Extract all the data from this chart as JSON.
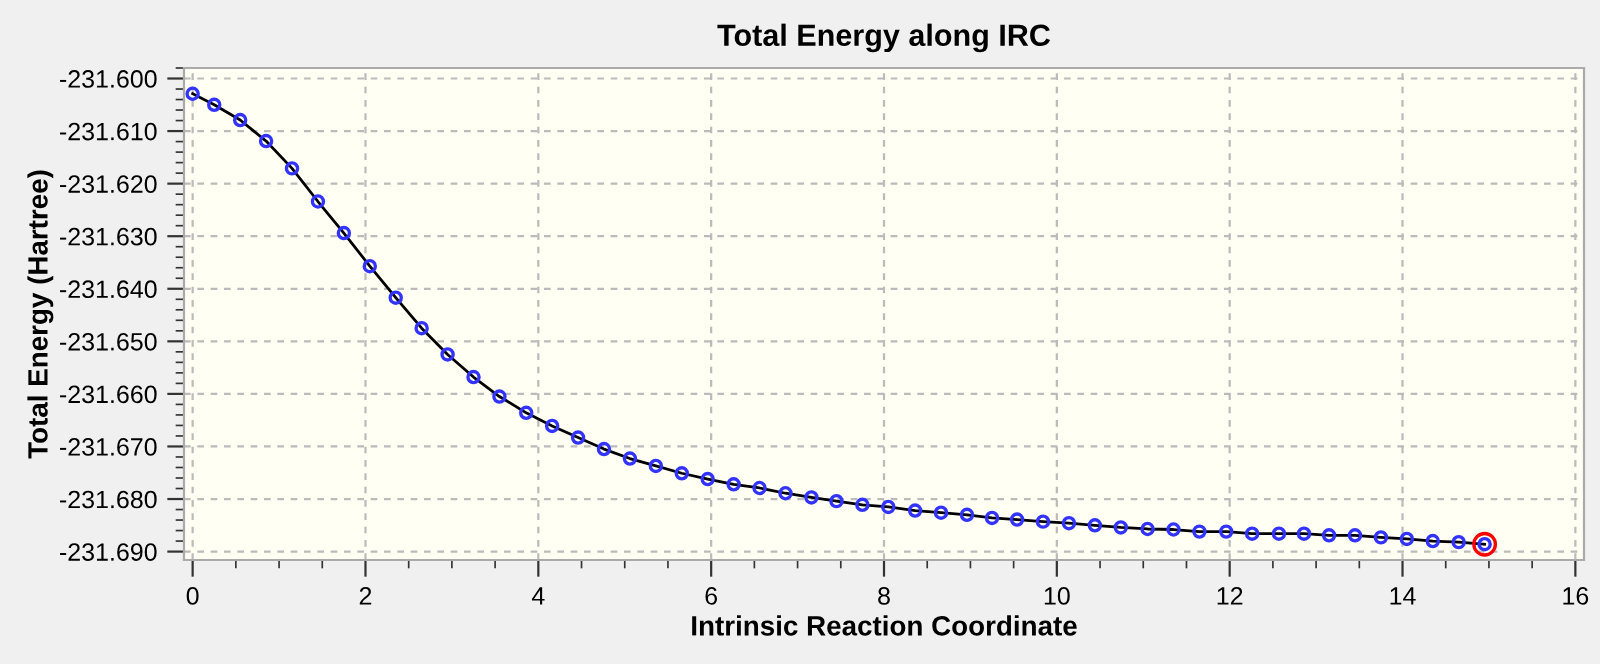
{
  "chart_data": {
    "type": "line",
    "title": "Total Energy along IRC",
    "xlabel": "Intrinsic Reaction Coordinate",
    "ylabel": "Total Energy (Hartree)",
    "xlim": [
      -0.1,
      16.1
    ],
    "xticks": [
      0,
      2,
      4,
      6,
      8,
      10,
      12,
      14,
      16
    ],
    "ylim": [
      -231.6916,
      -231.598
    ],
    "yticks": [
      {
        "value": -231.69,
        "label": "-231.690"
      },
      {
        "value": -231.68,
        "label": "-231.680"
      },
      {
        "value": -231.67,
        "label": "-231.670"
      },
      {
        "value": -231.66,
        "label": "-231.660"
      },
      {
        "value": -231.65,
        "label": "-231.650"
      },
      {
        "value": -231.64,
        "label": "-231.640"
      },
      {
        "value": -231.63,
        "label": "-231.630"
      },
      {
        "value": -231.62,
        "label": "-231.620"
      },
      {
        "value": -231.61,
        "label": "-231.610"
      },
      {
        "value": -231.6,
        "label": "-231.600"
      }
    ],
    "grid": true,
    "marker": "circle",
    "line_style": "solid",
    "series": [
      {
        "color": "#000000",
        "x": [
          0,
          0.25,
          0.55,
          0.85,
          1.15,
          1.45,
          1.75,
          2.05,
          2.35,
          2.65,
          2.95,
          3.25,
          3.55,
          3.86,
          4.16,
          4.46,
          4.76,
          5.06,
          5.36,
          5.66,
          5.96,
          6.26,
          6.56,
          6.86,
          7.16,
          7.45,
          7.75,
          8.05,
          8.36,
          8.66,
          8.96,
          9.25,
          9.54,
          9.84,
          10.14,
          10.44,
          10.74,
          11.05,
          11.35,
          11.65,
          11.96,
          12.26,
          12.57,
          12.86,
          13.15,
          13.45,
          13.75,
          14.05,
          14.35,
          14.65,
          14.95
        ],
        "values": [
          -231.6029,
          -231.605,
          -231.6079,
          -231.6119,
          -231.6171,
          -231.6234,
          -231.6294,
          -231.6357,
          -231.6417,
          -231.6475,
          -231.6525,
          -231.6568,
          -231.6605,
          -231.6636,
          -231.6661,
          -231.6683,
          -231.6705,
          -231.6723,
          -231.6737,
          -231.6751,
          -231.6762,
          -231.6772,
          -231.6779,
          -231.6789,
          -231.6797,
          -231.6804,
          -231.6811,
          -231.6815,
          -231.6822,
          -231.6826,
          -231.683,
          -231.6836,
          -231.6839,
          -231.6843,
          -231.6846,
          -231.685,
          -231.6854,
          -231.6857,
          -231.6858,
          -231.6862,
          -231.6862,
          -231.6866,
          -231.6866,
          -231.6866,
          -231.6869,
          -231.6869,
          -231.6873,
          -231.6876,
          -231.688,
          -231.6882,
          -231.6886
        ]
      },
      {
        "type": "scatter",
        "color": "#ff0000",
        "x": [
          14.95
        ],
        "values": [
          -231.6886
        ]
      }
    ]
  }
}
